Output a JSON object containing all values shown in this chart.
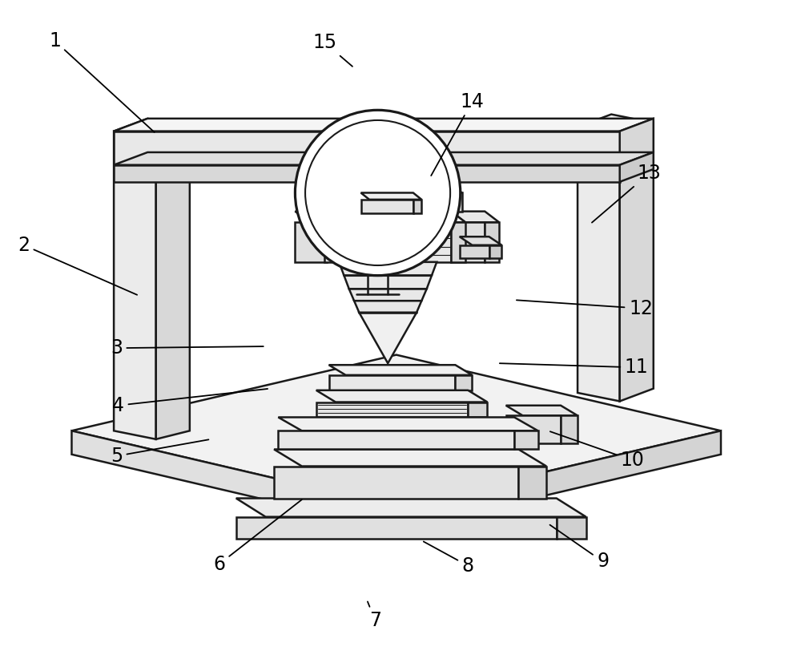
{
  "bg": "#ffffff",
  "lc": "#1a1a1a",
  "lw": 1.8,
  "fs": 17,
  "fig_w": 10.0,
  "fig_h": 8.22,
  "annotations": [
    [
      1,
      95,
      68,
      215,
      178
    ],
    [
      2,
      58,
      310,
      195,
      370
    ],
    [
      3,
      168,
      432,
      345,
      430
    ],
    [
      4,
      170,
      500,
      350,
      480
    ],
    [
      5,
      168,
      560,
      280,
      540
    ],
    [
      6,
      290,
      688,
      390,
      610
    ],
    [
      7,
      475,
      755,
      465,
      730
    ],
    [
      8,
      585,
      690,
      530,
      660
    ],
    [
      9,
      745,
      685,
      680,
      640
    ],
    [
      10,
      780,
      565,
      680,
      530
    ],
    [
      11,
      785,
      455,
      620,
      450
    ],
    [
      12,
      790,
      385,
      640,
      375
    ],
    [
      13,
      800,
      225,
      730,
      285
    ],
    [
      14,
      590,
      140,
      540,
      230
    ],
    [
      15,
      415,
      70,
      450,
      100
    ]
  ]
}
